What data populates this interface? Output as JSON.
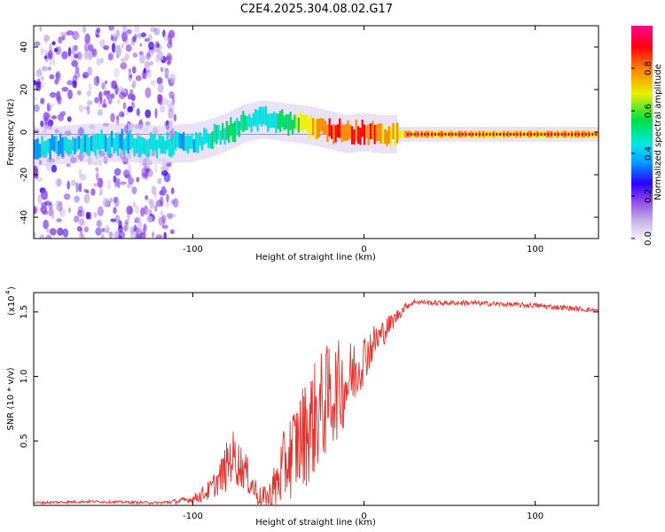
{
  "title": "C2E4.2025.304.08.02.G17",
  "colorbar_label": "Normalized spectral amplitude",
  "colorbar_ticks": [
    "0.0",
    "0.2",
    "0.4",
    "0.6",
    "0.8"
  ],
  "chart_data": [
    {
      "type": "heatmap",
      "name": "spectrogram",
      "xlabel": "Height of straight line (km)",
      "ylabel": "Frequency (Hz)",
      "xlim": [
        -193,
        137
      ],
      "ylim": [
        -50,
        50
      ],
      "xticks": [
        -100,
        0,
        100
      ],
      "xtick_labels": [
        "-100",
        "0",
        "100"
      ],
      "yticks": [
        -40,
        -20,
        0,
        20,
        40
      ],
      "ytick_labels": [
        "-40",
        "-20",
        "0",
        "20",
        "40"
      ],
      "colormap": [
        "#c9b6e8",
        "#8a44e6",
        "#3a00e8",
        "#0090ff",
        "#00e0e0",
        "#00d860",
        "#f0f000",
        "#ff8c00",
        "#ff0000",
        "#ff0080"
      ],
      "ridge": {
        "x": [
          -190,
          -175,
          -160,
          -140,
          -120,
          -100,
          -90,
          -80,
          -70,
          -60,
          -50,
          -40,
          -30,
          -20,
          -10,
          0,
          10,
          20,
          40,
          60,
          80,
          100,
          120,
          137
        ],
        "freq": [
          -7,
          -6,
          -5,
          -5,
          -6,
          -5,
          -3,
          0,
          4,
          6,
          5,
          4,
          3,
          1,
          -1,
          0,
          -1,
          -1,
          -1,
          -1,
          -1,
          -1,
          -1,
          -1
        ],
        "amplitude": [
          0.4,
          0.45,
          0.45,
          0.45,
          0.45,
          0.45,
          0.5,
          0.55,
          0.55,
          0.5,
          0.55,
          0.65,
          0.75,
          0.85,
          0.85,
          0.9,
          0.8,
          0.75,
          0.75,
          0.75,
          0.75,
          0.75,
          0.75,
          0.75
        ]
      }
    },
    {
      "type": "line",
      "name": "snr",
      "xlabel": "Height of straight line (km)",
      "ylabel": "SNR (10 * v/v)",
      "yscale_label": "(x10",
      "yscale_exp": "4",
      "xlim": [
        -193,
        137
      ],
      "ylim": [
        0,
        1.65
      ],
      "xticks": [
        -100,
        0,
        100
      ],
      "xtick_labels": [
        "-100",
        "0",
        "100"
      ],
      "yticks": [
        0.5,
        1.0,
        1.5
      ],
      "ytick_labels": [
        "0.5",
        "1.0",
        "1.5"
      ],
      "color": "#e8302a",
      "series": {
        "x": [
          -193,
          -160,
          -120,
          -110,
          -100,
          -95,
          -90,
          -85,
          -80,
          -77,
          -75,
          -70,
          -65,
          -60,
          -55,
          -50,
          -45,
          -40,
          -35,
          -30,
          -25,
          -20,
          -15,
          -10,
          -5,
          0,
          5,
          10,
          15,
          20,
          25,
          30,
          40,
          60,
          80,
          100,
          120,
          137
        ],
        "y": [
          0.02,
          0.03,
          0.02,
          0.03,
          0.05,
          0.08,
          0.12,
          0.2,
          0.3,
          0.4,
          0.35,
          0.28,
          0.15,
          0.05,
          0.06,
          0.2,
          0.35,
          0.45,
          0.55,
          0.65,
          0.75,
          0.85,
          0.9,
          0.95,
          1.05,
          1.15,
          1.25,
          1.32,
          1.4,
          1.48,
          1.55,
          1.58,
          1.57,
          1.57,
          1.56,
          1.55,
          1.53,
          1.51
        ],
        "noise": [
          0.01,
          0.01,
          0.01,
          0.02,
          0.03,
          0.06,
          0.08,
          0.12,
          0.2,
          0.2,
          0.2,
          0.16,
          0.12,
          0.08,
          0.14,
          0.24,
          0.32,
          0.38,
          0.42,
          0.45,
          0.45,
          0.42,
          0.38,
          0.32,
          0.26,
          0.2,
          0.15,
          0.12,
          0.08,
          0.05,
          0.03,
          0.02,
          0.02,
          0.02,
          0.02,
          0.02,
          0.02,
          0.02
        ]
      }
    }
  ]
}
